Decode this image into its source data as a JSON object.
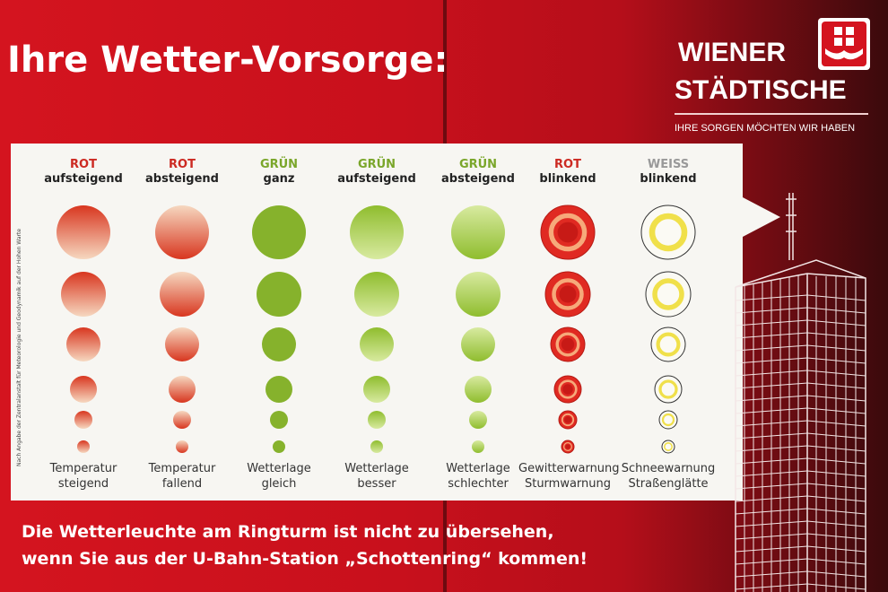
{
  "title": "Ihre Wetter-Vorsorge:",
  "logo": {
    "line1": "WIENER",
    "line2": "STÄDTISCHE",
    "tagline": "IHRE SORGEN MÖCHTEN WIR HABEN",
    "emblem": "shield-flower-icon"
  },
  "source_note": "Nach Angabe der Zentralanstalt für Meteorologie und Geodynamik auf der Hohen Warte",
  "columns": [
    {
      "color": "ROT",
      "motion": "aufsteigend",
      "label1": "Temperatur",
      "label2": "steigend",
      "accent": "#cc2a22",
      "style": "grad-up"
    },
    {
      "color": "ROT",
      "motion": "absteigend",
      "label1": "Temperatur",
      "label2": "fallend",
      "accent": "#cc2a22",
      "style": "grad-down"
    },
    {
      "color": "GRÜN",
      "motion": "ganz",
      "label1": "Wetterlage",
      "label2": "gleich",
      "accent": "#7aa62a",
      "style": "solid-green"
    },
    {
      "color": "GRÜN",
      "motion": "aufsteigend",
      "label1": "Wetterlage",
      "label2": "besser",
      "accent": "#7aa62a",
      "style": "green-up"
    },
    {
      "color": "GRÜN",
      "motion": "absteigend",
      "label1": "Wetterlage",
      "label2": "schlechter",
      "accent": "#7aa62a",
      "style": "green-down"
    },
    {
      "color": "ROT",
      "motion": "blinkend",
      "label1": "Gewitterwarnung",
      "label2": "Sturmwarnung",
      "accent": "#cc2a22",
      "style": "red-ring"
    },
    {
      "color": "WEISS",
      "motion": "blinkend",
      "label1": "Schneewarnung",
      "label2": "Straßenglätte",
      "accent": "#999999",
      "style": "white-ring"
    }
  ],
  "footer": {
    "line1": "Die Wetterleuchte am Ringturm ist nicht zu übersehen,",
    "line2": "wenn Sie aus der U-Bahn-Station „Schottenring“ kommen!"
  }
}
